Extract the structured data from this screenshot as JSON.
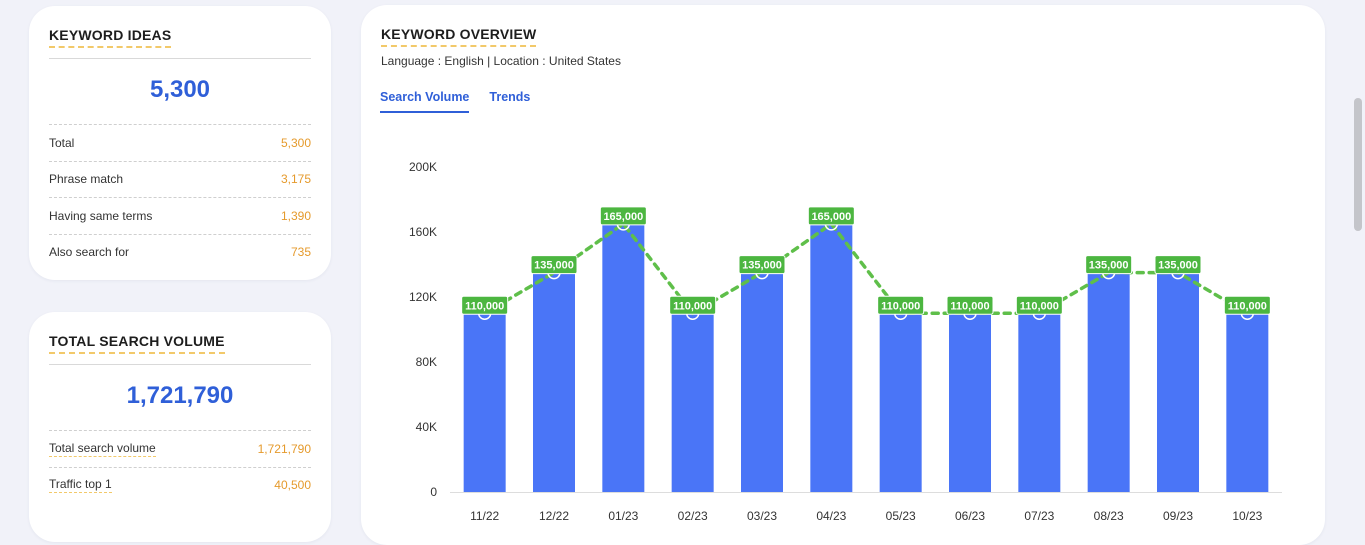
{
  "keyword_ideas": {
    "title": "KEYWORD IDEAS",
    "total_display": "5,300",
    "rows": [
      {
        "label": "Total",
        "value": "5,300"
      },
      {
        "label": "Phrase match",
        "value": "3,175"
      },
      {
        "label": "Having same terms",
        "value": "1,390"
      },
      {
        "label": "Also search for",
        "value": "735"
      }
    ]
  },
  "total_search_volume": {
    "title": "TOTAL SEARCH VOLUME",
    "total_display": "1,721,790",
    "rows": [
      {
        "label": "Total search volume",
        "value": "1,721,790"
      },
      {
        "label": "Traffic top 1",
        "value": "40,500"
      }
    ]
  },
  "keyword_overview": {
    "title": "KEYWORD OVERVIEW",
    "subtitle": "Language : English | Location : United States",
    "tabs": [
      {
        "label": "Search Volume",
        "active": true
      },
      {
        "label": "Trends",
        "active": false
      }
    ]
  },
  "colors": {
    "bar": "#4a75f7",
    "line": "#5fbf4a",
    "label_bg": "#4cb640",
    "accent": "#2f5fd8",
    "value": "#e59a2c"
  },
  "chart_data": {
    "type": "bar",
    "categories": [
      "11/22",
      "12/22",
      "01/23",
      "02/23",
      "03/23",
      "04/23",
      "05/23",
      "06/23",
      "07/23",
      "08/23",
      "09/23",
      "10/23"
    ],
    "series": [
      {
        "values": [
          110000,
          135000,
          165000,
          110000,
          135000,
          165000,
          110000,
          110000,
          110000,
          135000,
          135000,
          110000
        ]
      }
    ],
    "data_labels": [
      "110,000",
      "135,000",
      "165,000",
      "110,000",
      "135,000",
      "165,000",
      "110,000",
      "110,000",
      "110,000",
      "135,000",
      "135,000",
      "110,000"
    ],
    "y_ticks": [
      0,
      40000,
      80000,
      120000,
      160000,
      200000
    ],
    "y_tick_labels": [
      "0",
      "40K",
      "80K",
      "120K",
      "160K",
      "200K"
    ],
    "ylim": [
      0,
      200000
    ],
    "overlay_line": "dashed",
    "grid": false,
    "legend": "none"
  }
}
